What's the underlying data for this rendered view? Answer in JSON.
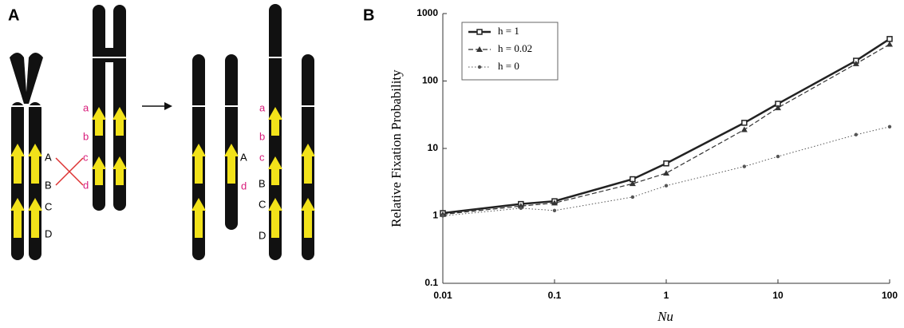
{
  "panel_a": {
    "label": "A",
    "left_labels": [
      "A",
      "B",
      "C",
      "D"
    ],
    "middle_labels": [
      "a",
      "b",
      "c",
      "d"
    ],
    "right_short_labels": [
      "A",
      "d"
    ],
    "right_long_labels": [
      "a",
      "b",
      "c",
      "B",
      "C",
      "D"
    ]
  },
  "panel_b_label": "B",
  "chart_data": {
    "type": "line",
    "x_label": "Nu",
    "y_label": "Relative Fixation Probability",
    "x": [
      0.01,
      0.05,
      0.1,
      0.5,
      1,
      5,
      10,
      50,
      100
    ],
    "xscale": "log",
    "yscale": "log",
    "xlim": [
      0.01,
      100
    ],
    "xticks": [
      0.01,
      0.1,
      1,
      10,
      100
    ],
    "ylim": [
      0.1,
      1000
    ],
    "yticks": [
      0.1,
      1,
      10,
      100,
      1000
    ],
    "legend": "upper left",
    "series": [
      {
        "name": "h = 1",
        "color": "#222222",
        "line_style": "solid",
        "marker": "square",
        "values": [
          1.1,
          1.5,
          1.65,
          3.5,
          6,
          24,
          46,
          200,
          420
        ]
      },
      {
        "name": "h = 0.02",
        "color": "#333333",
        "line_style": "dashed",
        "marker": "triangle",
        "values": [
          1.05,
          1.4,
          1.55,
          3.0,
          4.3,
          19,
          40,
          180,
          350
        ]
      },
      {
        "name": "h = 0",
        "color": "#555555",
        "line_style": "dotted",
        "marker": "circle",
        "values": [
          1.0,
          1.3,
          1.2,
          1.9,
          2.8,
          5.4,
          7.6,
          16,
          21
        ]
      }
    ]
  }
}
